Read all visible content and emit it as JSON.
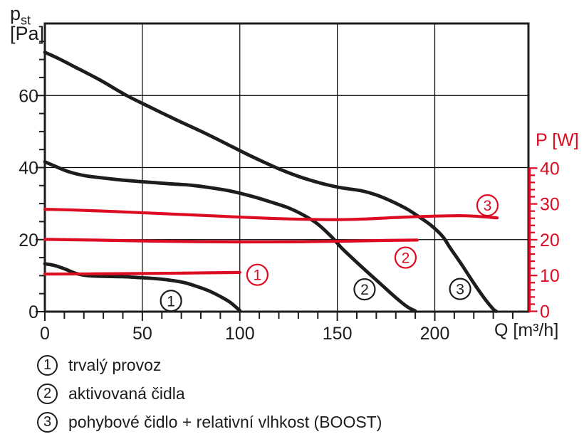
{
  "page": {
    "background": "#ffffff"
  },
  "colors": {
    "black": "#1d1d1b",
    "red": "#dc0c23",
    "grid": "#000000"
  },
  "axes_titles": {
    "y_left_main": "p",
    "y_left_sub": "st",
    "y_left_unit": "[Pa]",
    "y_right": "P [W]",
    "x": "Q [m³/h]"
  },
  "chart_data": {
    "type": "line",
    "title": "",
    "x_axis": {
      "label": "Q [m³/h]",
      "min": 0,
      "max": 248,
      "minor_step": 10,
      "minor_max": 240,
      "labeled_ticks": [
        0,
        50,
        100,
        150,
        200
      ],
      "gridlines": [
        50,
        100,
        150,
        200
      ]
    },
    "y_left_axis": {
      "label": "pst [Pa]",
      "min": 0,
      "max": 80,
      "minor_step": 5,
      "labeled_ticks": [
        0,
        20,
        40,
        60
      ],
      "gridlines": [
        20,
        40,
        60
      ]
    },
    "y_right_axis": {
      "label": "P [W]",
      "min": 0,
      "max": 40,
      "minor_step": 2,
      "labeled_ticks": [
        0,
        10,
        20,
        30,
        40
      ]
    },
    "series": [
      {
        "id": "pressure-1",
        "curve": "1",
        "axis": "left",
        "color": "black",
        "points": [
          [
            0,
            13.3
          ],
          [
            5,
            12.8
          ],
          [
            10,
            11.9
          ],
          [
            16,
            10.6
          ],
          [
            22,
            10.0
          ],
          [
            30,
            9.8
          ],
          [
            40,
            9.7
          ],
          [
            50,
            9.4
          ],
          [
            58,
            9.1
          ],
          [
            66,
            8.6
          ],
          [
            72,
            8.0
          ],
          [
            78,
            7.0
          ],
          [
            84,
            5.8
          ],
          [
            90,
            4.2
          ],
          [
            95,
            2.6
          ],
          [
            100,
            0.3
          ]
        ]
      },
      {
        "id": "pressure-2",
        "curve": "2",
        "axis": "left",
        "color": "black",
        "points": [
          [
            0,
            41.6
          ],
          [
            6,
            40.2
          ],
          [
            12,
            38.9
          ],
          [
            20,
            37.8
          ],
          [
            30,
            37.1
          ],
          [
            40,
            36.5
          ],
          [
            52,
            36.0
          ],
          [
            64,
            35.5
          ],
          [
            75,
            35.1
          ],
          [
            85,
            34.4
          ],
          [
            95,
            33.5
          ],
          [
            105,
            32.2
          ],
          [
            115,
            30.6
          ],
          [
            125,
            28.8
          ],
          [
            133,
            26.7
          ],
          [
            140,
            24.3
          ],
          [
            147,
            20.8
          ],
          [
            152,
            17.8
          ],
          [
            158,
            14.7
          ],
          [
            165,
            11.2
          ],
          [
            172,
            7.8
          ],
          [
            180,
            3.9
          ],
          [
            186,
            1.3
          ],
          [
            190,
            0.2
          ]
        ]
      },
      {
        "id": "pressure-3",
        "curve": "3",
        "axis": "left",
        "color": "black",
        "points": [
          [
            0,
            72
          ],
          [
            8,
            70
          ],
          [
            18,
            67.2
          ],
          [
            28,
            64.4
          ],
          [
            42,
            60
          ],
          [
            55,
            56.5
          ],
          [
            68,
            53.1
          ],
          [
            80,
            50.1
          ],
          [
            92,
            46.9
          ],
          [
            103,
            43.9
          ],
          [
            112,
            41.6
          ],
          [
            122,
            39.2
          ],
          [
            132,
            37.2
          ],
          [
            142,
            35.6
          ],
          [
            152,
            34.4
          ],
          [
            162,
            33.6
          ],
          [
            170,
            32.4
          ],
          [
            178,
            30.6
          ],
          [
            186,
            28.4
          ],
          [
            192,
            26.3
          ],
          [
            198,
            24.0
          ],
          [
            204,
            20.9
          ],
          [
            208,
            17.6
          ],
          [
            214,
            12.9
          ],
          [
            220,
            7.9
          ],
          [
            226,
            3.3
          ],
          [
            230,
            0.7
          ],
          [
            231.5,
            0.1
          ]
        ]
      },
      {
        "id": "power-1",
        "curve": "1",
        "axis": "right",
        "color": "red",
        "points": [
          [
            0,
            10.4
          ],
          [
            25,
            10.45
          ],
          [
            50,
            10.55
          ],
          [
            75,
            10.7
          ],
          [
            100,
            10.85
          ]
        ]
      },
      {
        "id": "power-2",
        "curve": "2",
        "axis": "right",
        "color": "red",
        "points": [
          [
            0,
            20.1
          ],
          [
            25,
            19.9
          ],
          [
            55,
            19.6
          ],
          [
            90,
            19.4
          ],
          [
            125,
            19.4
          ],
          [
            155,
            19.6
          ],
          [
            175,
            19.8
          ],
          [
            191,
            19.9
          ]
        ]
      },
      {
        "id": "power-3",
        "curve": "3",
        "axis": "right",
        "color": "red",
        "points": [
          [
            0,
            28.5
          ],
          [
            15,
            28.3
          ],
          [
            35,
            27.9
          ],
          [
            60,
            27.3
          ],
          [
            85,
            26.7
          ],
          [
            105,
            26.2
          ],
          [
            125,
            25.8
          ],
          [
            145,
            25.6
          ],
          [
            160,
            25.7
          ],
          [
            180,
            26.2
          ],
          [
            200,
            26.6
          ],
          [
            215,
            26.7
          ],
          [
            225,
            26.4
          ],
          [
            232,
            26.1
          ]
        ]
      }
    ],
    "annotations": [
      {
        "text": "1",
        "color": "black",
        "axis": "left",
        "q": 64.7,
        "value": 3.0
      },
      {
        "text": "2",
        "color": "black",
        "axis": "left",
        "q": 164,
        "value": 6.2
      },
      {
        "text": "3",
        "color": "black",
        "axis": "left",
        "q": 213,
        "value": 6.3
      },
      {
        "text": "1",
        "color": "red",
        "axis": "right",
        "q": 109,
        "value": 10.2
      },
      {
        "text": "2",
        "color": "red",
        "axis": "right",
        "q": 185,
        "value": 15.0
      },
      {
        "text": "3",
        "color": "red",
        "axis": "right",
        "q": 227,
        "value": 29.6
      }
    ]
  },
  "legend": {
    "items": [
      {
        "num": "1",
        "label": "trvalý provoz"
      },
      {
        "num": "2",
        "label": "aktivovaná čidla"
      },
      {
        "num": "3",
        "label": "pohybové čidlo + relativní vlhkost (BOOST)"
      }
    ]
  }
}
